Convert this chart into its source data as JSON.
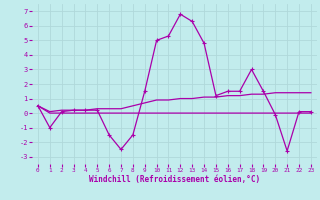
{
  "xlabel": "Windchill (Refroidissement éolien,°C)",
  "background_color": "#c2eced",
  "grid_color": "#b0d8da",
  "line_color": "#aa00aa",
  "x": [
    0,
    1,
    2,
    3,
    4,
    5,
    6,
    7,
    8,
    9,
    10,
    11,
    12,
    13,
    14,
    15,
    16,
    17,
    18,
    19,
    20,
    21,
    22,
    23
  ],
  "y_temp": [
    0.5,
    -1.0,
    0.1,
    0.2,
    0.2,
    0.2,
    -1.5,
    -2.5,
    -1.5,
    1.5,
    5.0,
    5.3,
    6.8,
    6.3,
    4.8,
    1.2,
    1.5,
    1.5,
    3.0,
    1.5,
    -0.1,
    -2.6,
    0.1,
    0.1
  ],
  "y_flat": [
    0.5,
    0.0,
    0.0,
    0.0,
    0.0,
    0.0,
    0.0,
    0.0,
    0.0,
    0.0,
    0.0,
    0.0,
    0.0,
    0.0,
    0.0,
    0.0,
    0.0,
    0.0,
    0.0,
    0.0,
    0.0,
    0.0,
    0.0,
    0.0
  ],
  "y_trend": [
    0.5,
    0.1,
    0.2,
    0.2,
    0.2,
    0.3,
    0.3,
    0.3,
    0.5,
    0.7,
    0.9,
    0.9,
    1.0,
    1.0,
    1.1,
    1.1,
    1.2,
    1.2,
    1.3,
    1.3,
    1.4,
    1.4,
    1.4,
    1.4
  ],
  "ylim": [
    -3.5,
    7.5
  ],
  "xlim": [
    -0.5,
    23.5
  ],
  "yticks": [
    -3,
    -2,
    -1,
    0,
    1,
    2,
    3,
    4,
    5,
    6,
    7
  ],
  "xticks": [
    0,
    1,
    2,
    3,
    4,
    5,
    6,
    7,
    8,
    9,
    10,
    11,
    12,
    13,
    14,
    15,
    16,
    17,
    18,
    19,
    20,
    21,
    22,
    23
  ]
}
